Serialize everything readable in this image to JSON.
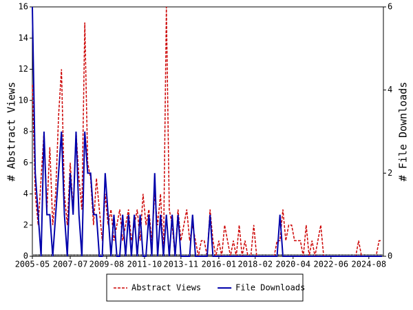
{
  "chart_data": {
    "type": "line",
    "y_label": "# Abstract Views",
    "y2_label": "# File Downloads",
    "x": [
      "2005-05",
      "2005-07",
      "2005-09",
      "2005-11",
      "2006-01",
      "2006-03",
      "2006-05",
      "2006-07",
      "2006-09",
      "2006-11",
      "2007-01",
      "2007-03",
      "2007-05",
      "2007-07",
      "2007-09",
      "2007-11",
      "2008-01",
      "2008-03",
      "2008-05",
      "2008-07",
      "2008-09",
      "2008-11",
      "2009-01",
      "2009-03",
      "2009-05",
      "2009-07",
      "2009-09",
      "2009-11",
      "2010-01",
      "2010-03",
      "2010-05",
      "2010-07",
      "2010-09",
      "2010-11",
      "2011-01",
      "2011-03",
      "2011-05",
      "2011-07",
      "2011-09",
      "2011-11",
      "2012-01",
      "2012-03",
      "2012-05",
      "2012-07",
      "2012-09",
      "2012-11",
      "2013-01",
      "2013-03",
      "2013-05",
      "2013-07",
      "2013-09",
      "2013-11",
      "2014-01",
      "2014-03",
      "2014-05",
      "2014-07",
      "2014-09",
      "2014-11",
      "2015-01",
      "2015-03",
      "2015-05",
      "2015-07",
      "2015-09",
      "2015-11",
      "2016-01",
      "2016-03",
      "2016-05",
      "2016-07",
      "2016-09",
      "2016-11",
      "2017-01",
      "2017-03",
      "2017-05",
      "2017-07",
      "2017-09",
      "2017-11",
      "2018-01",
      "2018-03",
      "2018-05",
      "2018-07",
      "2018-09",
      "2018-11",
      "2019-01",
      "2019-03",
      "2019-05",
      "2019-07",
      "2019-09",
      "2019-11",
      "2020-01",
      "2020-03",
      "2020-05",
      "2020-07",
      "2020-09",
      "2020-11",
      "2021-01",
      "2021-03",
      "2021-05",
      "2021-07",
      "2021-09",
      "2021-11",
      "2022-01",
      "2022-03",
      "2022-05",
      "2022-07",
      "2022-09",
      "2022-11",
      "2023-01",
      "2023-03",
      "2023-05",
      "2023-07",
      "2023-09",
      "2023-11",
      "2024-01",
      "2024-03",
      "2024-05",
      "2024-07",
      "2024-09",
      "2024-11",
      "2025-01",
      "2025-03",
      "2025-05"
    ],
    "series": [
      {
        "name": "Abstract Views",
        "color": "#cc0000",
        "dash": true,
        "values": [
          11,
          4,
          2,
          5,
          8,
          3,
          7,
          2,
          4,
          9,
          12,
          4,
          2,
          6,
          3,
          8,
          5,
          3,
          15,
          6,
          5,
          2,
          5,
          3,
          1,
          4,
          2,
          3,
          1,
          2,
          3,
          1,
          2,
          3,
          1,
          2,
          3,
          1,
          4,
          2,
          3,
          1,
          4,
          2,
          4,
          0,
          16,
          3,
          2,
          0,
          3,
          1,
          2,
          3,
          1,
          2,
          1,
          0,
          1,
          1,
          0,
          3,
          1,
          0,
          1,
          0,
          2,
          1,
          0,
          1,
          0,
          2,
          0,
          1,
          0,
          0,
          2,
          0,
          0,
          0,
          0,
          0,
          0,
          0,
          1,
          1,
          3,
          1,
          2,
          2,
          1,
          1,
          1,
          0,
          2,
          0,
          1,
          0,
          1,
          2,
          0,
          0,
          0,
          0,
          0,
          0,
          0,
          0,
          0,
          0,
          0,
          0,
          1,
          0,
          0,
          0,
          0,
          0,
          0,
          1,
          1
        ]
      },
      {
        "name": "File Downloads",
        "color": "#0000aa",
        "dash": false,
        "axis": "y2",
        "values": [
          6,
          2,
          1,
          0,
          3,
          1,
          1,
          0,
          1,
          2,
          3,
          1,
          0,
          2,
          1,
          3,
          1,
          0,
          3,
          2,
          2,
          1,
          1,
          0,
          0,
          2,
          1,
          0,
          1,
          0,
          0,
          1,
          0,
          1,
          0,
          1,
          0,
          1,
          0,
          0,
          1,
          0,
          2,
          0,
          1,
          0,
          1,
          0,
          1,
          0,
          1,
          0,
          0,
          0,
          0,
          1,
          0,
          0,
          0,
          0,
          0,
          1,
          0,
          0,
          0,
          0,
          0,
          0,
          0,
          0,
          0,
          0,
          0,
          0,
          0,
          0,
          0,
          0,
          0,
          0,
          0,
          0,
          0,
          0,
          0,
          1,
          0,
          0,
          0,
          0,
          0,
          0,
          0,
          0,
          0,
          0,
          0,
          0,
          0,
          0,
          0,
          0,
          0,
          0,
          0,
          0,
          0,
          0,
          0,
          0,
          0,
          0,
          0,
          0,
          0,
          0,
          0,
          0,
          0,
          0,
          0
        ]
      }
    ],
    "xlim": [
      "2005-05",
      "2025-06"
    ],
    "xticks": [
      "2005-05",
      "2007-07",
      "2009-08",
      "2011-10",
      "2013-11",
      "2016-01",
      "2018-02",
      "2020-04",
      "2022-06",
      "2024-08"
    ],
    "ylim": [
      0,
      16
    ],
    "yticks": [
      0,
      2,
      4,
      6,
      8,
      10,
      12,
      14,
      16
    ],
    "y2lim": [
      0,
      6
    ],
    "y2ticks": [
      0,
      2,
      4,
      6
    ],
    "legend": "bottom"
  }
}
